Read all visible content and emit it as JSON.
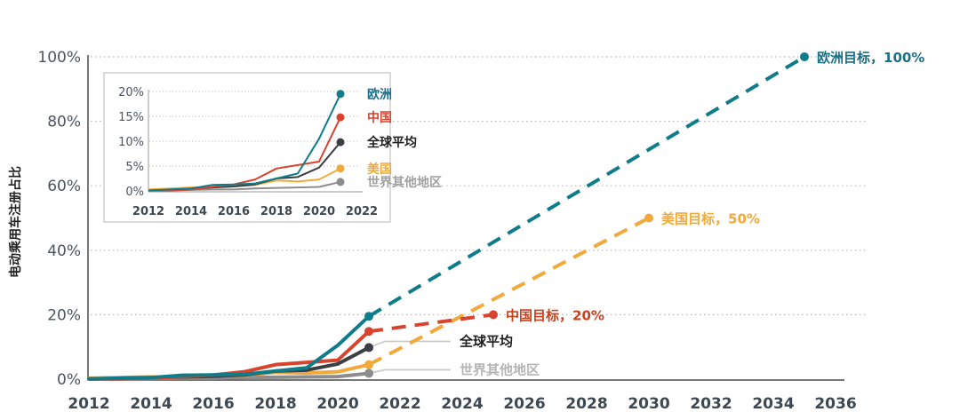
{
  "chart_data": [
    {
      "type": "line",
      "title": "",
      "xlabel": "",
      "ylabel": "电动乘用车注册占比",
      "xlim": [
        2012,
        2036
      ],
      "ylim": [
        0,
        100
      ],
      "x_ticks": [
        "2012",
        "2014",
        "2016",
        "2018",
        "2020",
        "2022",
        "2024",
        "2026",
        "2028",
        "2030",
        "2032",
        "2034",
        "2036"
      ],
      "y_ticks": [
        "0%",
        "20%",
        "40%",
        "60%",
        "80%",
        "100%"
      ],
      "grid": "horizontal dotted",
      "series": [
        {
          "name": "欧洲",
          "color": "#0f7c8a",
          "x": [
            2012,
            2013,
            2014,
            2015,
            2016,
            2017,
            2018,
            2019,
            2020,
            2021
          ],
          "y": [
            0.1,
            0.3,
            0.5,
            1.2,
            1.3,
            1.5,
            2.5,
            3.5,
            10.5,
            19.5
          ]
        },
        {
          "name": "中国",
          "color": "#d8432e",
          "x": [
            2012,
            2013,
            2014,
            2015,
            2016,
            2017,
            2018,
            2019,
            2020,
            2021
          ],
          "y": [
            0.1,
            0.1,
            0.3,
            0.8,
            1.3,
            2.3,
            4.5,
            5.2,
            5.9,
            14.8
          ]
        },
        {
          "name": "全球平均",
          "color": "#3b3f45",
          "x": [
            2012,
            2013,
            2014,
            2015,
            2016,
            2017,
            2018,
            2019,
            2020,
            2021
          ],
          "y": [
            0.1,
            0.2,
            0.4,
            0.7,
            0.9,
            1.3,
            2.5,
            2.8,
            4.7,
            9.8
          ]
        },
        {
          "name": "美国",
          "color": "#f2a93b",
          "x": [
            2012,
            2013,
            2014,
            2015,
            2016,
            2017,
            2018,
            2019,
            2020,
            2021
          ],
          "y": [
            0.3,
            0.5,
            0.7,
            0.7,
            0.9,
            1.2,
            2.1,
            1.9,
            2.3,
            4.5
          ]
        },
        {
          "name": "世界其他地区",
          "color": "#8c8c8c",
          "x": [
            2012,
            2013,
            2014,
            2015,
            2016,
            2017,
            2018,
            2019,
            2020,
            2021
          ],
          "y": [
            0.05,
            0.1,
            0.2,
            0.3,
            0.3,
            0.5,
            0.6,
            0.7,
            0.8,
            1.8
          ]
        }
      ],
      "targets": [
        {
          "name": "欧洲目标",
          "label": "欧洲目标，100%",
          "color": "#0f7c8a",
          "from": [
            2021,
            19.5
          ],
          "to": [
            2035,
            100
          ]
        },
        {
          "name": "美国目标",
          "label": "美国目标，50%",
          "color": "#f2a93b",
          "from": [
            2021,
            4.5
          ],
          "to": [
            2030,
            50
          ]
        },
        {
          "name": "中国目标",
          "label": "中国目标，20%",
          "color": "#d8432e",
          "from": [
            2021,
            14.8
          ],
          "to": [
            2025,
            20
          ]
        }
      ],
      "annotations": [
        {
          "text": "全球平均",
          "color": "#1f1f1f"
        },
        {
          "text": "世界其他地区",
          "color": "#b5b5b5"
        }
      ]
    },
    {
      "type": "line",
      "title": "inset",
      "xlim": [
        2012,
        2022
      ],
      "ylim": [
        0,
        20
      ],
      "x_ticks": [
        "2012",
        "2014",
        "2016",
        "2018",
        "2020",
        "2022"
      ],
      "y_ticks": [
        "0%",
        "5%",
        "10%",
        "15%",
        "20%"
      ],
      "grid": "horizontal dotted",
      "legend": [
        {
          "label": "欧洲",
          "color": "#1b6f86"
        },
        {
          "label": "中国",
          "color": "#d8432e"
        },
        {
          "label": "全球平均",
          "color": "#1f1f1f"
        },
        {
          "label": "美国",
          "color": "#f2a93b"
        },
        {
          "label": "世界其他地区",
          "color": "#a0a0a0"
        }
      ],
      "legend_position": "right"
    }
  ]
}
